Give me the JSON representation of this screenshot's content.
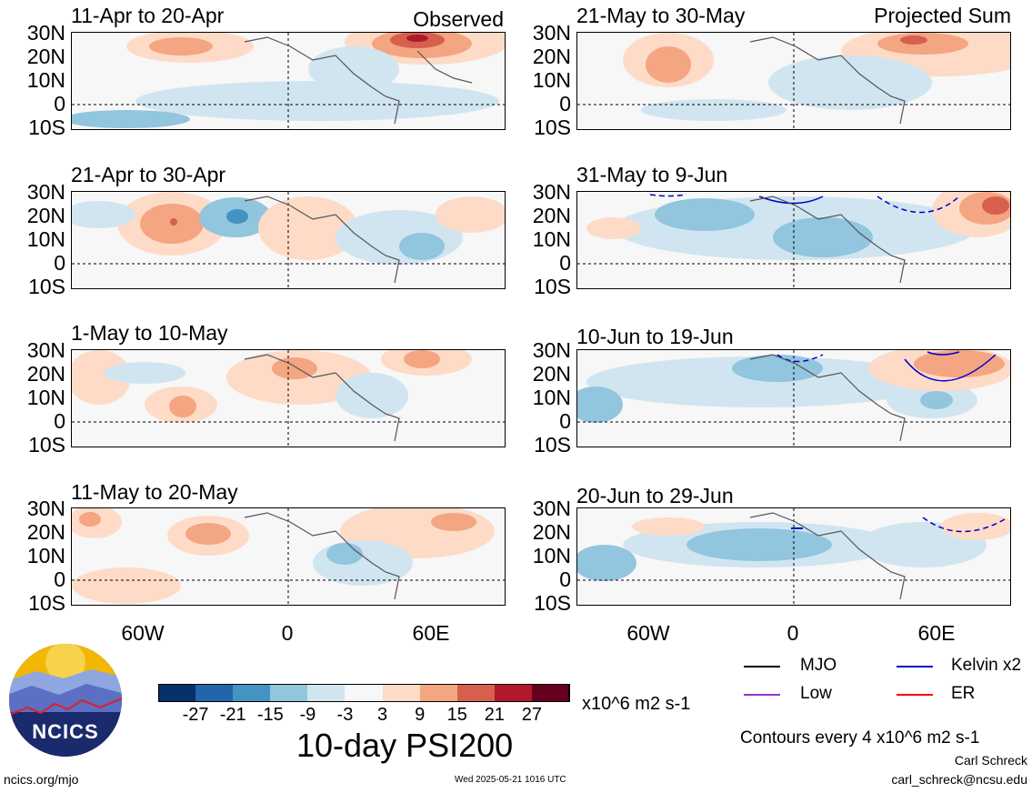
{
  "header": {
    "left_label": "Observed",
    "right_label": "Projected Sum"
  },
  "lat_labels": [
    "30N",
    "20N",
    "10N",
    "0",
    "10S"
  ],
  "lon_labels": [
    "60W",
    "0",
    "60E"
  ],
  "panels_left": [
    {
      "title": "11-Apr to 20-Apr"
    },
    {
      "title": "21-Apr to 30-Apr"
    },
    {
      "title": "1-May to 10-May"
    },
    {
      "title": "11-May to 20-May"
    }
  ],
  "panels_right": [
    {
      "title": "21-May to 30-May"
    },
    {
      "title": "31-May to 9-Jun"
    },
    {
      "title": "10-Jun to 19-Jun"
    },
    {
      "title": "20-Jun to 29-Jun"
    }
  ],
  "colorbar": {
    "colors": [
      "#08306b",
      "#2166ac",
      "#4393c3",
      "#92c5de",
      "#d1e5f0",
      "#f7f7f7",
      "#fddbc7",
      "#f4a582",
      "#d6604d",
      "#b2182b",
      "#67001f"
    ],
    "labels": [
      "-27",
      "-21",
      "-15",
      "-9",
      "-3",
      "3",
      "9",
      "15",
      "21",
      "27"
    ],
    "units": "x10^6 m2 s-1",
    "title": "10-day PSI200"
  },
  "legend": {
    "items": [
      {
        "label": "MJO",
        "color": "#000000"
      },
      {
        "label": "Kelvin x2",
        "color": "#0000cc"
      },
      {
        "label": "Low",
        "color": "#9933cc"
      },
      {
        "label": "ER",
        "color": "#ff0000"
      }
    ],
    "contours_note": "Contours every 4 x10^6 m2 s-1"
  },
  "footer": {
    "logo_text": "NCICS",
    "url": "ncics.org/mjo",
    "timestamp": "Wed 2025-05-21 1016 UTC",
    "author": "Carl Schreck",
    "email": "carl_schreck@ncsu.edu"
  }
}
